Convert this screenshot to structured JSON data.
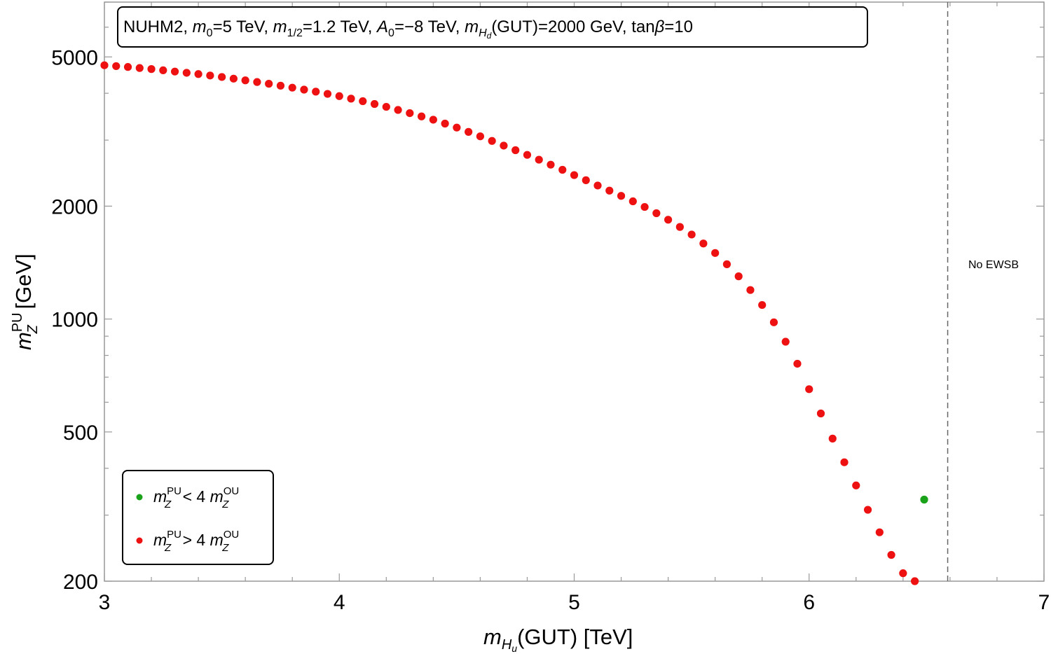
{
  "chart_data": {
    "type": "scatter",
    "title_parts": {
      "model": "NUHM2, ",
      "m0_sym": "m",
      "m0_sub": "0",
      "m0_val": "=5 TeV, ",
      "m12_sym": "m",
      "m12_sub": "1/2",
      "m12_val": "=1.2 TeV, ",
      "a0_sym": "A",
      "a0_sub": "0",
      "a0_val": "=−8 TeV, ",
      "mhd_sym": "m",
      "mhd_sub": "H",
      "mhd_subsub": "d",
      "mhd_val": "(GUT)=2000 GeV, tan",
      "beta_sym": "β",
      "tanb_val": "=10"
    },
    "xlabel_parts": {
      "sym": "m",
      "sub": "H",
      "subsub": "u",
      "text": "(GUT) [TeV]"
    },
    "ylabel_parts": {
      "sym": "m",
      "sup": "PU",
      "sub": "Z",
      "text": " [GeV]"
    },
    "xlim": [
      3,
      7
    ],
    "ylim": [
      200,
      7000
    ],
    "yscale": "log",
    "x_ticks": [
      "3",
      "4",
      "5",
      "6",
      "7"
    ],
    "y_ticks": [
      "200",
      "500",
      "1000",
      "2000",
      "5000"
    ],
    "legend_placement": "bottom-left",
    "region_label": "No EWSB",
    "boundary_x": 6.59,
    "legend": [
      {
        "sym": "m",
        "sup": "PU",
        "sub": "Z",
        "rel": " < 4 ",
        "sym2": "m",
        "sup2": "OU",
        "sub2": "Z",
        "color": "#1aa31a"
      },
      {
        "sym": "m",
        "sup": "PU",
        "sub": "Z",
        "rel": " > 4 ",
        "sym2": "m",
        "sup2": "OU",
        "sub2": "Z",
        "color": "#ee1111"
      }
    ],
    "series": [
      {
        "color": "#ee1111",
        "x": [
          3.0,
          3.05,
          3.1,
          3.15,
          3.2,
          3.25,
          3.3,
          3.35,
          3.4,
          3.45,
          3.5,
          3.55,
          3.6,
          3.65,
          3.7,
          3.75,
          3.8,
          3.85,
          3.9,
          3.95,
          4.0,
          4.05,
          4.1,
          4.15,
          4.2,
          4.25,
          4.3,
          4.35,
          4.4,
          4.45,
          4.5,
          4.55,
          4.6,
          4.65,
          4.7,
          4.75,
          4.8,
          4.85,
          4.9,
          4.95,
          5.0,
          5.05,
          5.1,
          5.15,
          5.2,
          5.25,
          5.3,
          5.35,
          5.4,
          5.45,
          5.5,
          5.55,
          5.6,
          5.65,
          5.7,
          5.75,
          5.8,
          5.85,
          5.9,
          5.95,
          6.0,
          6.05,
          6.1,
          6.15,
          6.2,
          6.25,
          6.3,
          6.35,
          6.4,
          6.45
        ],
        "y": [
          4750,
          4725,
          4700,
          4670,
          4640,
          4605,
          4570,
          4535,
          4500,
          4460,
          4420,
          4375,
          4330,
          4285,
          4240,
          4190,
          4140,
          4090,
          4040,
          3985,
          3930,
          3870,
          3810,
          3745,
          3680,
          3610,
          3540,
          3470,
          3400,
          3320,
          3240,
          3155,
          3070,
          2985,
          2900,
          2820,
          2740,
          2660,
          2580,
          2500,
          2420,
          2345,
          2270,
          2200,
          2130,
          2060,
          1990,
          1915,
          1840,
          1760,
          1680,
          1590,
          1500,
          1400,
          1300,
          1195,
          1090,
          980,
          870,
          760,
          650,
          560,
          480,
          415,
          360,
          310,
          270,
          235,
          210,
          200
        ]
      },
      {
        "color": "#1aa31a",
        "x": [
          6.49
        ],
        "y": [
          330
        ]
      }
    ]
  }
}
